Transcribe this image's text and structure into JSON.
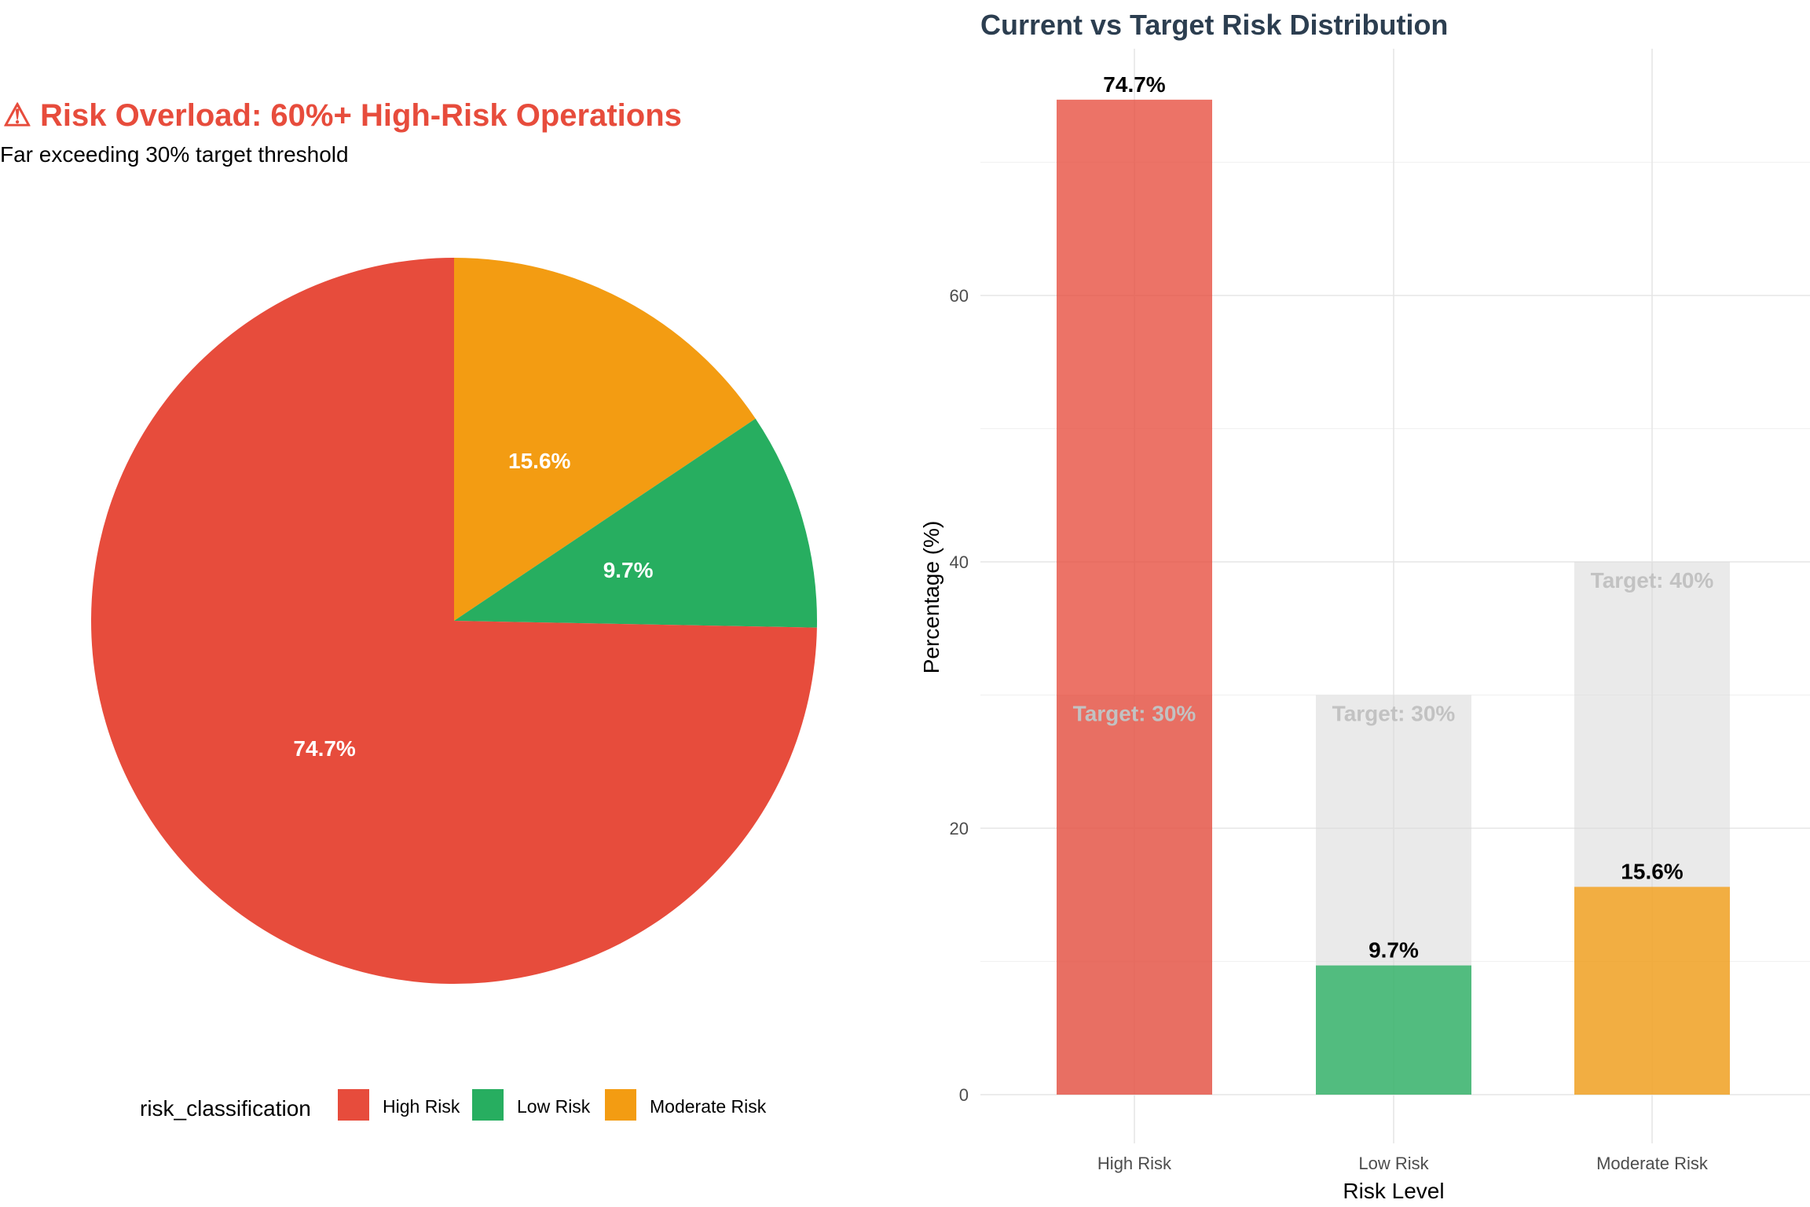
{
  "chart_data": [
    {
      "type": "pie",
      "title": "⚠ Risk Overload: 60%+ High-Risk Operations",
      "subtitle": "Far exceeding 30% target threshold",
      "legend_title": "risk_classification",
      "legend_position": "bottom",
      "slices": [
        {
          "label": "High Risk",
          "value": 74.7,
          "display": "74.7%",
          "color": "#e74c3c"
        },
        {
          "label": "Low Risk",
          "value": 9.7,
          "display": "9.7%",
          "color": "#27ae60"
        },
        {
          "label": "Moderate Risk",
          "value": 15.6,
          "display": "15.6%",
          "color": "#f39c12"
        }
      ]
    },
    {
      "type": "bar",
      "title": "Current vs Target Risk Distribution",
      "xlabel": "Risk Level",
      "ylabel": "Percentage (%)",
      "ylim": [
        0,
        76
      ],
      "yticks": [
        0,
        20,
        40,
        60
      ],
      "grid": true,
      "categories": [
        "High Risk",
        "Low Risk",
        "Moderate Risk"
      ],
      "values": [
        74.7,
        9.7,
        15.6
      ],
      "value_labels": [
        "74.7%",
        "9.7%",
        "15.6%"
      ],
      "colors": [
        "#e74c3c",
        "#27ae60",
        "#f39c12"
      ],
      "targets": [
        30,
        30,
        40
      ],
      "target_labels": [
        "Target: 30%",
        "Target: 30%",
        "Target: 40%"
      ],
      "target_color": "#d9d9d9"
    }
  ]
}
